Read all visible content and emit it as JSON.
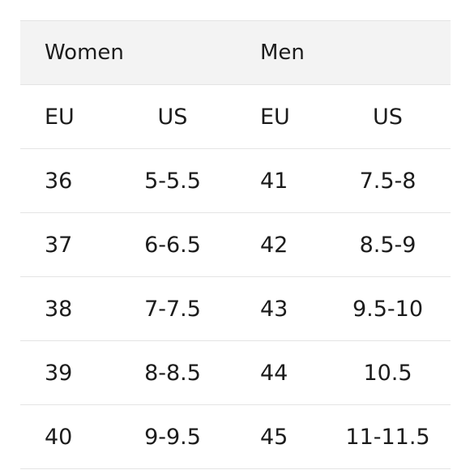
{
  "table": {
    "groups": [
      "Women",
      "Men"
    ],
    "subheaders": [
      "EU",
      "US",
      "EU",
      "US"
    ],
    "rows": [
      [
        "36",
        "5-5.5",
        "41",
        "7.5-8"
      ],
      [
        "37",
        "6-6.5",
        "42",
        "8.5-9"
      ],
      [
        "38",
        "7-7.5",
        "43",
        "9.5-10"
      ],
      [
        "39",
        "8-8.5",
        "44",
        "10.5"
      ],
      [
        "40",
        "9-9.5",
        "45",
        "11-11.5"
      ]
    ]
  }
}
